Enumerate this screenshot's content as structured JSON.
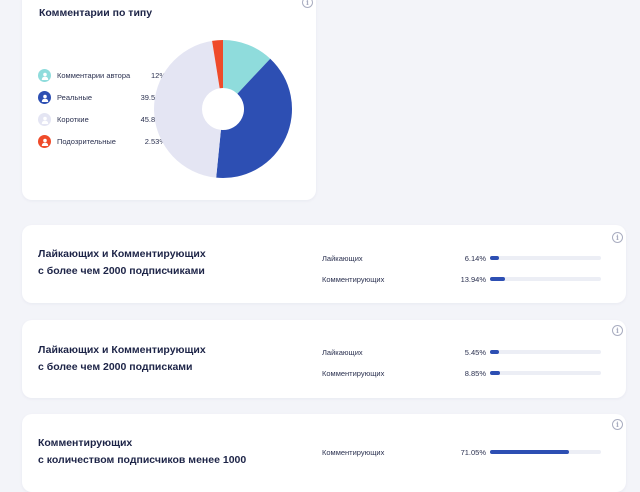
{
  "comments_card": {
    "title": "Комментарии по типу",
    "legend": [
      {
        "label": "Комментарии автора",
        "value": "12%",
        "color": "#8fdcdc",
        "icon": "user-icon"
      },
      {
        "label": "Реальные",
        "value": "39.58%",
        "color": "#2d4fb3",
        "icon": "user-icon"
      },
      {
        "label": "Короткие",
        "value": "45.89%",
        "color": "#e4e5f3",
        "icon": "user-icon"
      },
      {
        "label": "Подозрительные",
        "value": "2.53%",
        "color": "#ef4b2a",
        "icon": "user-icon"
      }
    ]
  },
  "chart_data": {
    "type": "pie",
    "categories": [
      "Комментарии автора",
      "Реальные",
      "Короткие",
      "Подозрительные"
    ],
    "values": [
      12,
      39.58,
      45.89,
      2.53
    ],
    "colors": [
      "#8fdcdc",
      "#2d4fb3",
      "#e4e5f3",
      "#ef4b2a"
    ],
    "donut": true,
    "title": "Комментарии по типу"
  },
  "metric_cards": [
    {
      "title_line1": "Лайкающих и Комментирующих",
      "title_line2": "с более чем 2000 подписчиками",
      "rows": [
        {
          "label": "Лайкающих",
          "value": "6.14%",
          "fraction": 0.0614
        },
        {
          "label": "Комментирующих",
          "value": "13.94%",
          "fraction": 0.1394
        }
      ]
    },
    {
      "title_line1": "Лайкающих и Комментирующих",
      "title_line2": "с более чем 2000 подписками",
      "rows": [
        {
          "label": "Лайкающих",
          "value": "5.45%",
          "fraction": 0.0545
        },
        {
          "label": "Комментирующих",
          "value": "8.85%",
          "fraction": 0.0885
        }
      ]
    },
    {
      "title_line1": "Комментирующих",
      "title_line2": "с количеством подписчиков менее 1000",
      "rows": [
        {
          "label": "Комментирующих",
          "value": "71.05%",
          "fraction": 0.7105
        }
      ]
    }
  ],
  "info_icon": "info-icon",
  "accent_color": "#2d4fb3"
}
